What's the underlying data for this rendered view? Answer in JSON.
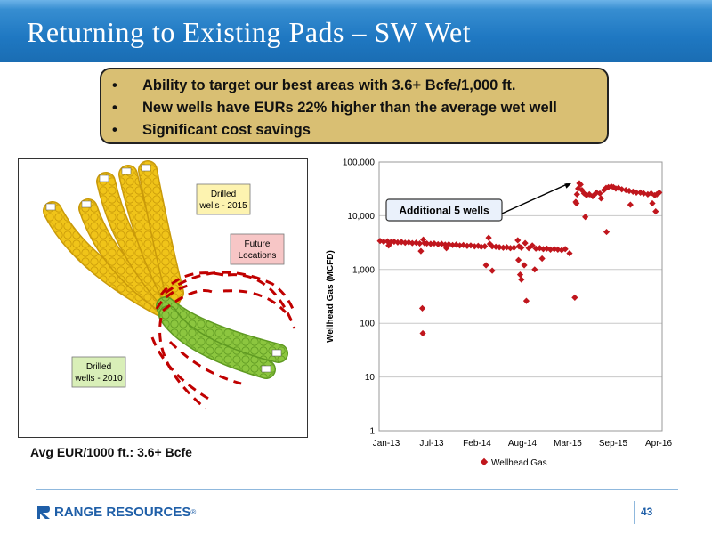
{
  "slide": {
    "title": "Returning to Existing Pads – SW Wet",
    "bullets": [
      "Ability to target our best areas with 3.6+ Bcfe/1,000 ft.",
      "New wells have EURs 22% higher than the average wet well",
      "Significant cost savings"
    ],
    "avg_eur": "Avg EUR/1000 ft.: 3.6+ Bcfe",
    "page_number": "43",
    "logo_text": "RANGE RESOURCES",
    "logo_reg": "®"
  },
  "map": {
    "callouts": {
      "drilled_2015_line1": "Drilled",
      "drilled_2015_line2": "wells - 2015",
      "future_line1": "Future",
      "future_line2": "Locations",
      "drilled_2010_line1": "Drilled",
      "drilled_2010_line2": "wells - 2010"
    },
    "colors": {
      "wells_2015": "#f0c419",
      "wells_2010": "#8cc63f",
      "future": "#c00000",
      "future_box": "#f7c6c6",
      "callout_box": "#fdf3b0",
      "callout_2010": "#d9efb8"
    }
  },
  "chart_data": {
    "type": "scatter",
    "ylabel": "Wellhead Gas (MCFD)",
    "y_scale": "log",
    "ylim": [
      1,
      100000
    ],
    "y_ticks": [
      "1",
      "10",
      "100",
      "1,000",
      "10,000",
      "100,000"
    ],
    "x_ticks": [
      "Jan-13",
      "Jul-13",
      "Feb-14",
      "Aug-14",
      "Mar-15",
      "Sep-15",
      "Apr-16"
    ],
    "xlim": [
      "2013-01",
      "2016-04"
    ],
    "legend": "Wellhead Gas",
    "legend_position": "bottom",
    "annotation": "Additional 5 wells",
    "marker_color": "#c0161d",
    "series": [
      {
        "name": "Wellhead Gas",
        "points": [
          [
            "2013-01-05",
            3400
          ],
          [
            "2013-01-20",
            3300
          ],
          [
            "2013-02-05",
            3350
          ],
          [
            "2013-02-20",
            3250
          ],
          [
            "2013-03-05",
            3300
          ],
          [
            "2013-03-20",
            3200
          ],
          [
            "2013-04-05",
            3250
          ],
          [
            "2013-04-20",
            3150
          ],
          [
            "2013-05-05",
            3200
          ],
          [
            "2013-05-20",
            3100
          ],
          [
            "2013-06-05",
            3150
          ],
          [
            "2013-06-20",
            3050
          ],
          [
            "2013-07-05",
            3600
          ],
          [
            "2013-07-10",
            3100
          ],
          [
            "2013-07-20",
            3050
          ],
          [
            "2013-08-05",
            3000
          ],
          [
            "2013-08-20",
            3050
          ],
          [
            "2013-09-05",
            2950
          ],
          [
            "2013-09-20",
            3000
          ],
          [
            "2013-10-05",
            2900
          ],
          [
            "2013-10-20",
            2950
          ],
          [
            "2013-11-05",
            2850
          ],
          [
            "2013-11-20",
            2900
          ],
          [
            "2013-12-05",
            2800
          ],
          [
            "2013-12-20",
            2850
          ],
          [
            "2014-01-05",
            2750
          ],
          [
            "2014-01-20",
            2800
          ],
          [
            "2014-02-05",
            2700
          ],
          [
            "2014-02-20",
            2750
          ],
          [
            "2014-03-05",
            2650
          ],
          [
            "2014-03-20",
            2700
          ],
          [
            "2014-04-05",
            3900
          ],
          [
            "2014-04-10",
            3000
          ],
          [
            "2014-04-20",
            2700
          ],
          [
            "2014-05-05",
            2650
          ],
          [
            "2014-05-20",
            2600
          ],
          [
            "2014-06-05",
            2550
          ],
          [
            "2014-06-20",
            2600
          ],
          [
            "2014-07-05",
            2500
          ],
          [
            "2014-07-20",
            2550
          ],
          [
            "2014-08-05",
            3500
          ],
          [
            "2014-08-10",
            2700
          ],
          [
            "2014-08-20",
            2550
          ],
          [
            "2014-09-05",
            3100
          ],
          [
            "2014-09-20",
            2500
          ],
          [
            "2014-10-05",
            2800
          ],
          [
            "2014-10-20",
            2450
          ],
          [
            "2014-11-05",
            2500
          ],
          [
            "2014-11-20",
            2400
          ],
          [
            "2014-12-05",
            2450
          ],
          [
            "2014-12-20",
            2350
          ],
          [
            "2015-01-05",
            2400
          ],
          [
            "2015-01-20",
            2350
          ],
          [
            "2015-02-05",
            2300
          ],
          [
            "2015-02-20",
            2400
          ],
          [
            "2013-02-10",
            2800
          ],
          [
            "2013-06-25",
            2200
          ],
          [
            "2013-07-01",
            190
          ],
          [
            "2013-07-03",
            65
          ],
          [
            "2013-10-10",
            2500
          ],
          [
            "2014-03-25",
            1200
          ],
          [
            "2014-04-20",
            950
          ],
          [
            "2014-08-08",
            1500
          ],
          [
            "2014-08-15",
            800
          ],
          [
            "2014-08-20",
            650
          ],
          [
            "2014-09-01",
            1200
          ],
          [
            "2014-09-10",
            260
          ],
          [
            "2014-10-15",
            1000
          ],
          [
            "2014-11-15",
            1600
          ],
          [
            "2015-03-10",
            2000
          ],
          [
            "2015-04-05",
            18000
          ],
          [
            "2015-04-10",
            25000
          ],
          [
            "2015-04-15",
            32000
          ],
          [
            "2015-04-20",
            40000
          ],
          [
            "2015-04-25",
            38000
          ],
          [
            "2015-05-01",
            30000
          ],
          [
            "2015-05-10",
            26000
          ],
          [
            "2015-05-15",
            9500
          ],
          [
            "2015-05-20",
            24000
          ],
          [
            "2015-06-01",
            25000
          ],
          [
            "2015-06-15",
            23000
          ],
          [
            "2015-07-01",
            27000
          ],
          [
            "2015-07-15",
            26000
          ],
          [
            "2015-08-01",
            30000
          ],
          [
            "2015-08-10",
            33000
          ],
          [
            "2015-08-20",
            34000
          ],
          [
            "2015-09-01",
            35000
          ],
          [
            "2015-09-10",
            34000
          ],
          [
            "2015-09-20",
            32000
          ],
          [
            "2015-10-01",
            33000
          ],
          [
            "2015-10-15",
            31000
          ],
          [
            "2015-11-01",
            30000
          ],
          [
            "2015-11-15",
            29000
          ],
          [
            "2015-12-01",
            28000
          ],
          [
            "2015-12-15",
            27000
          ],
          [
            "2016-01-01",
            27000
          ],
          [
            "2016-01-15",
            26000
          ],
          [
            "2016-02-01",
            25000
          ],
          [
            "2016-02-15",
            26000
          ],
          [
            "2016-03-01",
            24000
          ],
          [
            "2016-03-10",
            25000
          ],
          [
            "2016-03-20",
            27000
          ],
          [
            "2015-04-01",
            300
          ],
          [
            "2015-04-08",
            17000
          ],
          [
            "2015-06-20",
            24000
          ],
          [
            "2015-08-12",
            5000
          ],
          [
            "2015-07-20",
            21000
          ],
          [
            "2015-11-20",
            16000
          ],
          [
            "2016-02-20",
            17000
          ],
          [
            "2016-03-05",
            12000
          ]
        ]
      }
    ]
  }
}
